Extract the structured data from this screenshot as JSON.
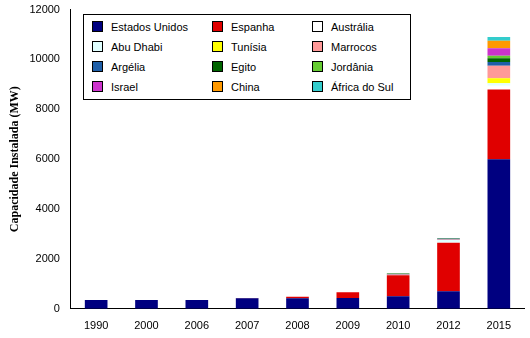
{
  "chart_data": {
    "type": "bar",
    "stacked": true,
    "grid": false,
    "legend": "top-left",
    "y_label": "Capacidade Instalada (MW)",
    "categories": [
      "1990",
      "2000",
      "2006",
      "2007",
      "2008",
      "2009",
      "2010",
      "2012",
      "2015"
    ],
    "ylim": [
      0,
      12000
    ],
    "yticks": [
      0,
      2000,
      4000,
      6000,
      8000,
      10000,
      12000
    ],
    "series": [
      {
        "name": "Estados Unidos",
        "color": "#000080",
        "values": [
          350,
          350,
          350,
          420,
          420,
          430,
          500,
          700,
          6000
        ]
      },
      {
        "name": "Espanha",
        "color": "#e00000",
        "values": [
          0,
          0,
          0,
          10,
          60,
          230,
          850,
          1950,
          2800
        ]
      },
      {
        "name": "Austrália",
        "color": "#ffffff",
        "values": [
          0,
          0,
          0,
          0,
          0,
          0,
          5,
          10,
          150
        ]
      },
      {
        "name": "Abu Dhabi",
        "color": "#e0ffff",
        "values": [
          0,
          0,
          0,
          0,
          0,
          0,
          0,
          100,
          100
        ]
      },
      {
        "name": "Tunísia",
        "color": "#ffff00",
        "values": [
          0,
          0,
          0,
          0,
          0,
          0,
          0,
          0,
          200
        ]
      },
      {
        "name": "Marrocos",
        "color": "#ff9999",
        "values": [
          0,
          0,
          0,
          0,
          0,
          0,
          20,
          20,
          500
        ]
      },
      {
        "name": "Argélia",
        "color": "#1f5fa8",
        "values": [
          0,
          0,
          0,
          0,
          0,
          0,
          25,
          25,
          150
        ]
      },
      {
        "name": "Egito",
        "color": "#006400",
        "values": [
          0,
          0,
          0,
          0,
          0,
          0,
          20,
          20,
          150
        ]
      },
      {
        "name": "Jordânia",
        "color": "#66cc33",
        "values": [
          0,
          0,
          0,
          0,
          0,
          0,
          0,
          0,
          100
        ]
      },
      {
        "name": "Israel",
        "color": "#cc33cc",
        "values": [
          0,
          0,
          0,
          0,
          0,
          0,
          0,
          0,
          300
        ]
      },
      {
        "name": "China",
        "color": "#ff9900",
        "values": [
          0,
          0,
          0,
          0,
          0,
          0,
          0,
          0,
          300
        ]
      },
      {
        "name": "África do Sul",
        "color": "#33cccc",
        "values": [
          0,
          0,
          0,
          0,
          0,
          0,
          0,
          0,
          150
        ]
      }
    ]
  }
}
